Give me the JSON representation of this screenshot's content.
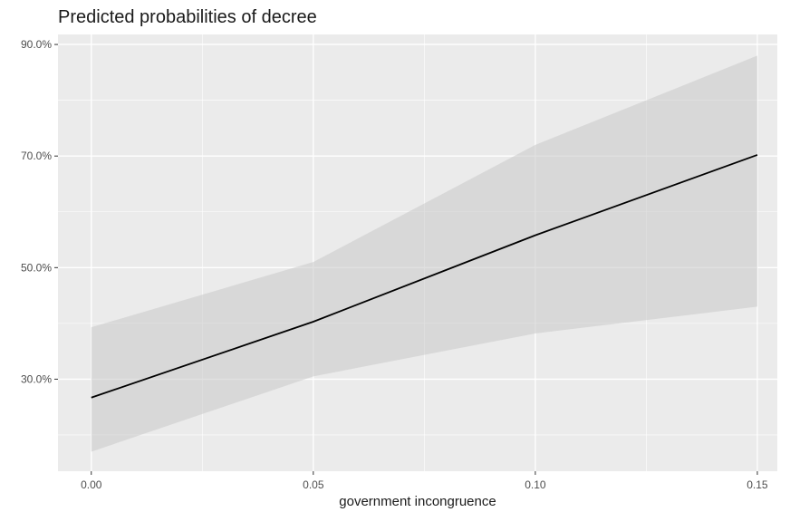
{
  "chart_data": {
    "type": "line",
    "title": "Predicted probabilities of decree",
    "xlabel": "government incongruence",
    "ylabel": "",
    "x": [
      0.0,
      0.05,
      0.1,
      0.15
    ],
    "series": [
      {
        "values": [
          26.7,
          40.3,
          55.8,
          70.2
        ],
        "ci_lower": [
          17.0,
          30.5,
          38.2,
          43.0
        ],
        "ci_upper": [
          39.3,
          51.0,
          72.0,
          88.0
        ]
      }
    ],
    "x_ticks": [
      "0.00",
      "0.05",
      "0.10",
      "0.15"
    ],
    "y_ticks": [
      "30.0%",
      "50.0%",
      "70.0%",
      "90.0%"
    ],
    "y_tick_values": [
      30,
      50,
      70,
      90
    ],
    "x_tick_values": [
      0.0,
      0.05,
      0.1,
      0.15
    ],
    "xlim": [
      -0.0075,
      0.1545
    ],
    "ylim": [
      13.5,
      91.8
    ],
    "grid": true,
    "colors": {
      "panel_background": "#ebebeb",
      "grid_major": "#ffffff",
      "line": "#000000",
      "ribbon": "#d4d4d4"
    }
  }
}
